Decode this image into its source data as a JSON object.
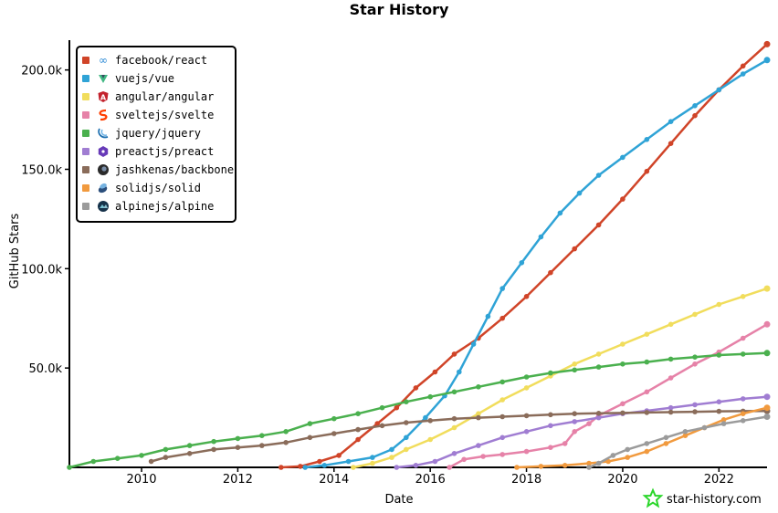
{
  "chart_data": {
    "type": "line",
    "title": "Star History",
    "xlabel": "Date",
    "ylabel": "GitHub Stars",
    "x_ticks": [
      "2010",
      "2012",
      "2014",
      "2016",
      "2018",
      "2020",
      "2022"
    ],
    "y_ticks": [
      "50.0k",
      "100.0k",
      "150.0k",
      "200.0k"
    ],
    "xlim": [
      2009.0,
      2023.5
    ],
    "ylim": [
      0,
      215000
    ],
    "grid": false,
    "legend_position": "top-left",
    "watermark": "star-history.com",
    "series": [
      {
        "name": "facebook/react",
        "color": "#d04428",
        "icon": "infinity-icon",
        "points": [
          [
            2013.4,
            0
          ],
          [
            2013.8,
            500
          ],
          [
            2014.2,
            3000
          ],
          [
            2014.6,
            6000
          ],
          [
            2015.0,
            14000
          ],
          [
            2015.4,
            22000
          ],
          [
            2015.8,
            30000
          ],
          [
            2016.2,
            40000
          ],
          [
            2016.6,
            48000
          ],
          [
            2017.0,
            57000
          ],
          [
            2017.5,
            65000
          ],
          [
            2018.0,
            75000
          ],
          [
            2018.5,
            86000
          ],
          [
            2019.0,
            98000
          ],
          [
            2019.5,
            110000
          ],
          [
            2020.0,
            122000
          ],
          [
            2020.5,
            135000
          ],
          [
            2021.0,
            149000
          ],
          [
            2021.5,
            163000
          ],
          [
            2022.0,
            177000
          ],
          [
            2022.5,
            190000
          ],
          [
            2023.0,
            202000
          ],
          [
            2023.5,
            213000
          ]
        ]
      },
      {
        "name": "vuejs/vue",
        "color": "#2fa3d6",
        "icon": "vue-icon",
        "points": [
          [
            2013.9,
            0
          ],
          [
            2014.3,
            1000
          ],
          [
            2014.8,
            3000
          ],
          [
            2015.3,
            5000
          ],
          [
            2015.7,
            9000
          ],
          [
            2016.0,
            15000
          ],
          [
            2016.4,
            25000
          ],
          [
            2016.8,
            36000
          ],
          [
            2017.1,
            48000
          ],
          [
            2017.4,
            62000
          ],
          [
            2017.7,
            76000
          ],
          [
            2018.0,
            90000
          ],
          [
            2018.4,
            103000
          ],
          [
            2018.8,
            116000
          ],
          [
            2019.2,
            128000
          ],
          [
            2019.6,
            138000
          ],
          [
            2020.0,
            147000
          ],
          [
            2020.5,
            156000
          ],
          [
            2021.0,
            165000
          ],
          [
            2021.5,
            174000
          ],
          [
            2022.0,
            182000
          ],
          [
            2022.5,
            190000
          ],
          [
            2023.0,
            198000
          ],
          [
            2023.5,
            205000
          ]
        ]
      },
      {
        "name": "angular/angular",
        "color": "#f1dd5c",
        "icon": "angular-icon",
        "points": [
          [
            2014.9,
            0
          ],
          [
            2015.3,
            2000
          ],
          [
            2015.7,
            5000
          ],
          [
            2016.0,
            9000
          ],
          [
            2016.5,
            14000
          ],
          [
            2017.0,
            20000
          ],
          [
            2017.5,
            27000
          ],
          [
            2018.0,
            34000
          ],
          [
            2018.5,
            40000
          ],
          [
            2019.0,
            46000
          ],
          [
            2019.5,
            52000
          ],
          [
            2020.0,
            57000
          ],
          [
            2020.5,
            62000
          ],
          [
            2021.0,
            67000
          ],
          [
            2021.5,
            72000
          ],
          [
            2022.0,
            77000
          ],
          [
            2022.5,
            82000
          ],
          [
            2023.0,
            86000
          ],
          [
            2023.5,
            90000
          ]
        ]
      },
      {
        "name": "sveltejs/svelte",
        "color": "#e682a8",
        "icon": "svelte-icon",
        "points": [
          [
            2016.9,
            0
          ],
          [
            2017.2,
            4000
          ],
          [
            2017.6,
            5500
          ],
          [
            2018.0,
            6500
          ],
          [
            2018.5,
            8000
          ],
          [
            2019.0,
            10000
          ],
          [
            2019.3,
            12000
          ],
          [
            2019.5,
            18000
          ],
          [
            2019.8,
            22000
          ],
          [
            2020.0,
            26000
          ],
          [
            2020.5,
            32000
          ],
          [
            2021.0,
            38000
          ],
          [
            2021.5,
            45000
          ],
          [
            2022.0,
            52000
          ],
          [
            2022.5,
            58000
          ],
          [
            2023.0,
            65000
          ],
          [
            2023.5,
            72000
          ]
        ]
      },
      {
        "name": "jquery/jquery",
        "color": "#4ab04e",
        "icon": "jquery-icon",
        "points": [
          [
            2009.0,
            0
          ],
          [
            2009.5,
            3000
          ],
          [
            2010.0,
            4500
          ],
          [
            2010.5,
            6000
          ],
          [
            2011.0,
            9000
          ],
          [
            2011.5,
            11000
          ],
          [
            2012.0,
            13000
          ],
          [
            2012.5,
            14500
          ],
          [
            2013.0,
            16000
          ],
          [
            2013.5,
            18000
          ],
          [
            2014.0,
            22000
          ],
          [
            2014.5,
            24500
          ],
          [
            2015.0,
            27000
          ],
          [
            2015.5,
            30000
          ],
          [
            2016.0,
            33000
          ],
          [
            2016.5,
            35500
          ],
          [
            2017.0,
            38000
          ],
          [
            2017.5,
            40500
          ],
          [
            2018.0,
            43000
          ],
          [
            2018.5,
            45500
          ],
          [
            2019.0,
            47500
          ],
          [
            2019.5,
            49000
          ],
          [
            2020.0,
            50500
          ],
          [
            2020.5,
            52000
          ],
          [
            2021.0,
            53000
          ],
          [
            2021.5,
            54500
          ],
          [
            2022.0,
            55500
          ],
          [
            2022.5,
            56500
          ],
          [
            2023.0,
            57000
          ],
          [
            2023.5,
            57500
          ]
        ]
      },
      {
        "name": "preactjs/preact",
        "color": "#a07dd2",
        "icon": "preact-icon",
        "points": [
          [
            2015.8,
            0
          ],
          [
            2016.2,
            1000
          ],
          [
            2016.6,
            3000
          ],
          [
            2017.0,
            7000
          ],
          [
            2017.5,
            11000
          ],
          [
            2018.0,
            15000
          ],
          [
            2018.5,
            18000
          ],
          [
            2019.0,
            21000
          ],
          [
            2019.5,
            23000
          ],
          [
            2020.0,
            25000
          ],
          [
            2020.5,
            27000
          ],
          [
            2021.0,
            28500
          ],
          [
            2021.5,
            30000
          ],
          [
            2022.0,
            31500
          ],
          [
            2022.5,
            33000
          ],
          [
            2023.0,
            34500
          ],
          [
            2023.5,
            35500
          ]
        ]
      },
      {
        "name": "jashkenas/backbone",
        "color": "#8a6c5a",
        "icon": "backbone-icon",
        "points": [
          [
            2010.7,
            3000
          ],
          [
            2011.0,
            5000
          ],
          [
            2011.5,
            7000
          ],
          [
            2012.0,
            9000
          ],
          [
            2012.5,
            10000
          ],
          [
            2013.0,
            11000
          ],
          [
            2013.5,
            12500
          ],
          [
            2014.0,
            15000
          ],
          [
            2014.5,
            17000
          ],
          [
            2015.0,
            19000
          ],
          [
            2015.5,
            21000
          ],
          [
            2016.0,
            22500
          ],
          [
            2016.5,
            23500
          ],
          [
            2017.0,
            24500
          ],
          [
            2017.5,
            25000
          ],
          [
            2018.0,
            25500
          ],
          [
            2018.5,
            26000
          ],
          [
            2019.0,
            26500
          ],
          [
            2019.5,
            27000
          ],
          [
            2020.0,
            27200
          ],
          [
            2020.5,
            27400
          ],
          [
            2021.0,
            27600
          ],
          [
            2021.5,
            27800
          ],
          [
            2022.0,
            28000
          ],
          [
            2022.5,
            28200
          ],
          [
            2023.0,
            28300
          ],
          [
            2023.5,
            28400
          ]
        ]
      },
      {
        "name": "solidjs/solid",
        "color": "#f19a3e",
        "icon": "solid-icon",
        "points": [
          [
            2018.3,
            0
          ],
          [
            2018.8,
            500
          ],
          [
            2019.3,
            1000
          ],
          [
            2019.8,
            2000
          ],
          [
            2020.2,
            3000
          ],
          [
            2020.6,
            5000
          ],
          [
            2021.0,
            8000
          ],
          [
            2021.4,
            12000
          ],
          [
            2021.8,
            16000
          ],
          [
            2022.2,
            20000
          ],
          [
            2022.6,
            24000
          ],
          [
            2023.0,
            27000
          ],
          [
            2023.5,
            30000
          ]
        ]
      },
      {
        "name": "alpinejs/alpine",
        "color": "#9b9b9b",
        "icon": "alpine-icon",
        "points": [
          [
            2019.8,
            0
          ],
          [
            2020.0,
            2000
          ],
          [
            2020.3,
            6000
          ],
          [
            2020.6,
            9000
          ],
          [
            2021.0,
            12000
          ],
          [
            2021.4,
            15000
          ],
          [
            2021.8,
            18000
          ],
          [
            2022.2,
            20000
          ],
          [
            2022.6,
            22000
          ],
          [
            2023.0,
            23500
          ],
          [
            2023.5,
            25500
          ]
        ]
      }
    ]
  }
}
